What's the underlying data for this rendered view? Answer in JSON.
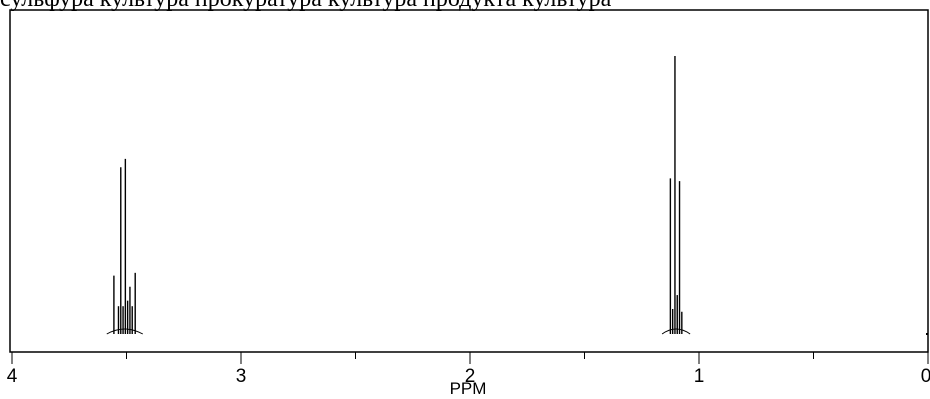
{
  "header": {
    "clipped_text": "сульфура культура прокуратура культура продукта культура"
  },
  "chart_data": {
    "type": "line",
    "title": "",
    "xlabel": "PPM",
    "ylabel": "",
    "xlim": [
      4,
      0
    ],
    "x_reversed": true,
    "ylim": [
      0,
      1
    ],
    "x_ticks": [
      4,
      3,
      2,
      1,
      0
    ],
    "x_tick_labels": [
      "4",
      "3",
      "2",
      "1",
      "0"
    ],
    "x_minor_ticks": [
      3.5,
      2.5,
      1.5,
      0.5
    ],
    "grid": false,
    "legend": "none",
    "series": [
      {
        "peaks": [
          {
            "ppm": 3.555,
            "height": 0.21
          },
          {
            "ppm": 3.535,
            "height": 0.1
          },
          {
            "ppm": 3.525,
            "height": 0.6
          },
          {
            "ppm": 3.515,
            "height": 0.1
          },
          {
            "ppm": 3.505,
            "height": 0.63
          },
          {
            "ppm": 3.495,
            "height": 0.12
          },
          {
            "ppm": 3.485,
            "height": 0.17
          },
          {
            "ppm": 3.475,
            "height": 0.1
          },
          {
            "ppm": 3.462,
            "height": 0.22
          },
          {
            "ppm": 1.125,
            "height": 0.56
          },
          {
            "ppm": 1.115,
            "height": 0.09
          },
          {
            "ppm": 1.105,
            "height": 1.0
          },
          {
            "ppm": 1.095,
            "height": 0.14
          },
          {
            "ppm": 1.085,
            "height": 0.55
          },
          {
            "ppm": 1.075,
            "height": 0.08
          }
        ]
      }
    ]
  }
}
